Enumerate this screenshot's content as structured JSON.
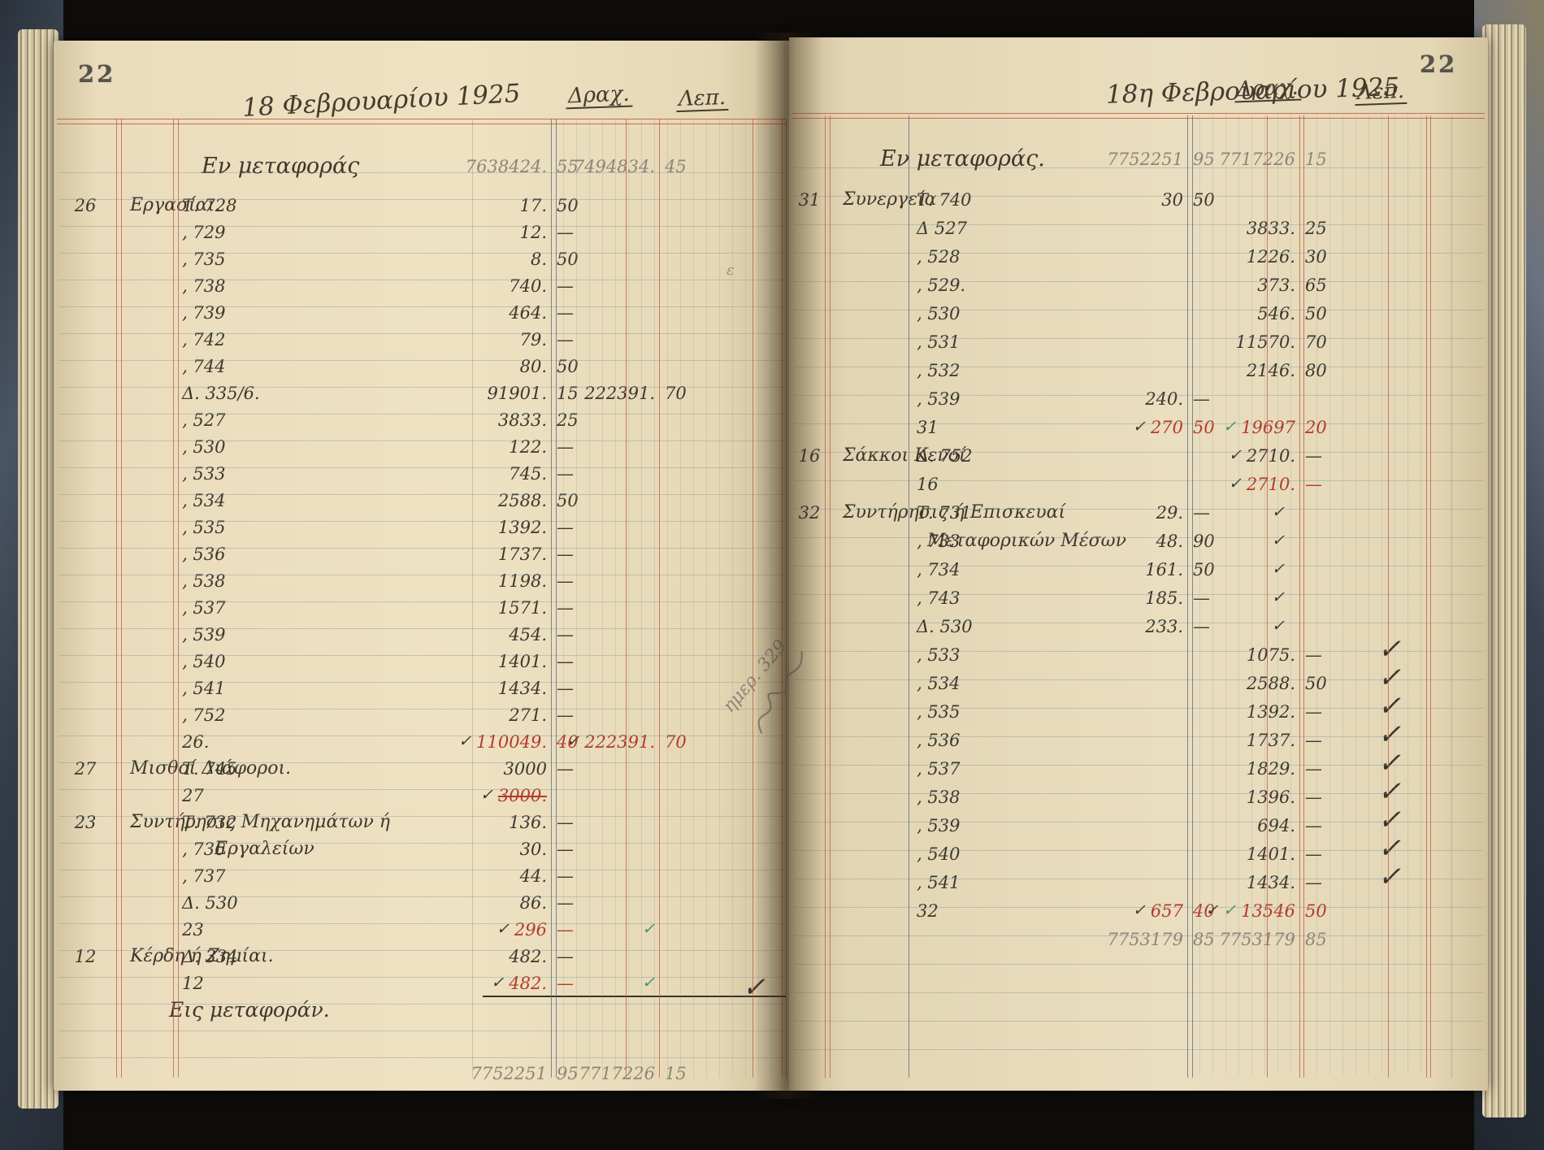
{
  "photo": {
    "description": "handwritten Greek ledger book, opened spread, February 1925"
  },
  "colors": {
    "paper": "#eadec0",
    "ink": "#3e372c",
    "red_ink": "#b23a2c",
    "pencil": "#8e8577",
    "green_check": "#3f9166",
    "rule_red": "#be523a",
    "rule_blue": "#587086"
  },
  "left_page": {
    "page_number": "22",
    "date": "18 Φεβρουαρίου 1925",
    "col_money": "Δραχ.",
    "col_lepta": "Λεπ.",
    "carry_in_label": "Εν μεταφοράς",
    "carry_in": {
      "d1": "7638424.",
      "c1": "55",
      "d2": "7494834.",
      "c2": "45"
    },
    "stray_mark": "ε",
    "rows": [
      {
        "n": "26",
        "t": "Εργασίαι.",
        "v": "Τ. 728",
        "d1": "17.",
        "c1": "50"
      },
      {
        "v": "‚ 729",
        "d1": "12.",
        "c1": "—"
      },
      {
        "v": "‚ 735",
        "d1": "8.",
        "c1": "50"
      },
      {
        "v": "‚ 738",
        "d1": "740.",
        "c1": "—"
      },
      {
        "v": "‚ 739",
        "d1": "464.",
        "c1": "—"
      },
      {
        "v": "‚ 742",
        "d1": "79.",
        "c1": "—"
      },
      {
        "v": "‚ 744",
        "d1": "80.",
        "c1": "50"
      },
      {
        "v": "Δ. 335/6.",
        "d1": "91901.",
        "c1": "15",
        "d2": "222391.",
        "c2": "70"
      },
      {
        "v": "‚ 527",
        "d1": "3833.",
        "c1": "25"
      },
      {
        "v": "‚ 530",
        "d1": "122.",
        "c1": "—"
      },
      {
        "v": "‚ 533",
        "d1": "745.",
        "c1": "—"
      },
      {
        "v": "‚ 534",
        "d1": "2588.",
        "c1": "50"
      },
      {
        "v": "‚ 535",
        "d1": "1392.",
        "c1": "—"
      },
      {
        "v": "‚ 536",
        "d1": "1737.",
        "c1": "—"
      },
      {
        "v": "‚ 538",
        "d1": "1198.",
        "c1": "—"
      },
      {
        "v": "‚ 537",
        "d1": "1571.",
        "c1": "—"
      },
      {
        "v": "‚ 539",
        "d1": "454.",
        "c1": "—"
      },
      {
        "v": "‚ 540",
        "d1": "1401.",
        "c1": "—"
      },
      {
        "v": "‚ 541",
        "d1": "1434.",
        "c1": "—"
      },
      {
        "v": "‚ 752",
        "d1": "271.",
        "c1": "—"
      },
      {
        "v": "26.",
        "k1": "✓",
        "d1": "110049.",
        "c1": "40",
        "r1": 1,
        "k2": "✓",
        "d2": "222391.",
        "c2": "70",
        "r2": 1
      },
      {
        "n": "27",
        "t": "Μισθοί Διάφοροι.",
        "v": "Τ. 745",
        "d1": "3000",
        "c1": "—"
      },
      {
        "v": "27",
        "k1": "✓",
        "d1": "3000.",
        "c1": "",
        "r1": 1,
        "s1": 1
      },
      {
        "n": "23",
        "t": "Συντήρησις Μηχανημάτων ή",
        "v": "Τ. 732",
        "d1": "136.",
        "c1": "—"
      },
      {
        "t2": "Εργαλείων",
        "v": "‚ 736",
        "d1": "30.",
        "c1": "—"
      },
      {
        "v": "‚ 737",
        "d1": "44.",
        "c1": "—"
      },
      {
        "v": "Δ. 530",
        "d1": "86.",
        "c1": "—"
      },
      {
        "v": "23",
        "k1": "✓",
        "d1": "296",
        "c1": "—",
        "r1": 1,
        "g2": 1
      },
      {
        "n": "12",
        "t": "Κέρδη ή Ζημίαι.",
        "v": "Δ. 334",
        "d1": "482.",
        "c1": "—"
      },
      {
        "v": "12",
        "k1": "✓",
        "d1": "482.",
        "c1": "—",
        "r1": 1,
        "g2": 1,
        "b2": 1,
        "u": 1
      },
      {
        "t": "Εις μεταφοράν.",
        "big": 1
      }
    ],
    "carry_out": {
      "d1": "7752251",
      "c1": "95",
      "d2": "7717226",
      "c2": "15"
    }
  },
  "right_page": {
    "page_number": "22",
    "date": "18η Φεβρουαρίου 1925",
    "col_money": "Δραχ.",
    "col_lepta": "Λεπ.",
    "carry_in_label": "Εν μεταφοράς.",
    "carry_in": {
      "d1": "7752251",
      "c1": "95",
      "d2": "7717226",
      "c2": "15"
    },
    "margin_note": "ημερ. 329",
    "rows": [
      {
        "n": "31",
        "t": "Συνεργεία",
        "v": "Τ. 740",
        "d1": "30",
        "c1": "50"
      },
      {
        "v": "Δ 527",
        "d2": "3833.",
        "c2": "25"
      },
      {
        "v": "‚ 528",
        "d2": "1226.",
        "c2": "30"
      },
      {
        "v": "‚ 529.",
        "d2": "373.",
        "c2": "65"
      },
      {
        "v": "‚ 530",
        "d2": "546.",
        "c2": "50"
      },
      {
        "v": "‚ 531",
        "d2": "11570.",
        "c2": "70"
      },
      {
        "v": "‚ 532",
        "d2": "2146.",
        "c2": "80"
      },
      {
        "v": "‚ 539",
        "d1": "240.",
        "c1": "—"
      },
      {
        "v": "31",
        "k1": "✓",
        "d1": "270",
        "c1": "50",
        "r1": 1,
        "g2": 1,
        "d2": "19697",
        "c2": "20",
        "r2": 1
      },
      {
        "n": "16",
        "t": "Σάκκοι Κενοί",
        "v": "Δ. 752",
        "k2": "✓",
        "d2": "2710.",
        "c2": "—"
      },
      {
        "v": "16",
        "k2": "✓",
        "d2": "2710.",
        "c2": "—",
        "r2": 1
      },
      {
        "n": "32",
        "t": "Συντήρησις ή Επισκευαί",
        "v": "Τ. 731",
        "d1": "29.",
        "c1": "—",
        "b1": 1
      },
      {
        "t2": "Μεταφορικών Μέσων",
        "v": "‚ 733",
        "d1": "48.",
        "c1": "90",
        "b1": 1
      },
      {
        "v": "‚ 734",
        "d1": "161.",
        "c1": "50",
        "b1": 1
      },
      {
        "v": "‚ 743",
        "d1": "185.",
        "c1": "—",
        "b1": 1
      },
      {
        "v": "Δ. 530",
        "d1": "233.",
        "c1": "—",
        "b1": 1
      },
      {
        "v": "‚ 533",
        "d2": "1075.",
        "c2": "—",
        "b2": 1
      },
      {
        "v": "‚ 534",
        "d2": "2588.",
        "c2": "50",
        "b2": 1
      },
      {
        "v": "‚ 535",
        "d2": "1392.",
        "c2": "—",
        "b2": 1
      },
      {
        "v": "‚ 536",
        "d2": "1737.",
        "c2": "—",
        "b2": 1
      },
      {
        "v": "‚ 537",
        "d2": "1829.",
        "c2": "—",
        "b2": 1
      },
      {
        "v": "‚ 538",
        "d2": "1396.",
        "c2": "—",
        "b2": 1
      },
      {
        "v": "‚ 539",
        "d2": "694.",
        "c2": "—",
        "b2": 1
      },
      {
        "v": "‚ 540",
        "d2": "1401.",
        "c2": "—",
        "b2": 1
      },
      {
        "v": "‚ 541",
        "d2": "1434.",
        "c2": "—",
        "b2": 1
      },
      {
        "v": "32",
        "k1": "✓",
        "d1": "657",
        "c1": "40",
        "r1": 1,
        "k2": "✓",
        "g2": 1,
        "d2": "13546",
        "c2": "50",
        "r2": 1
      },
      {
        "p": 1,
        "d1": "7753179",
        "c1": "85",
        "d2": "7753179",
        "c2": "85"
      }
    ]
  }
}
